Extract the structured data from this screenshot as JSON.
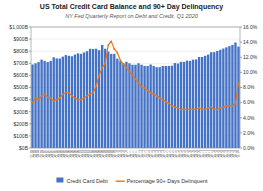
{
  "chart_data": {
    "type": "bar",
    "title": "US Total Credit Card Balance and 90+ Day Delinquency",
    "subtitle": "NY Fed Quarterly Report on Debt and Credit, Q1 2020",
    "categories": [
      "Q1\n03",
      "Q2\n03",
      "Q3\n03",
      "Q4\n03",
      "Q1\n04",
      "Q2\n04",
      "Q3\n04",
      "Q4\n04",
      "Q1\n05",
      "Q2\n05",
      "Q3\n05",
      "Q4\n05",
      "Q1\n06",
      "Q2\n06",
      "Q3\n06",
      "Q4\n06",
      "Q1\n07",
      "Q2\n07",
      "Q3\n07",
      "Q4\n07",
      "Q1\n08",
      "Q2\n08",
      "Q3\n08",
      "Q4\n08",
      "Q1\n09",
      "Q2\n09",
      "Q3\n09",
      "Q4\n09",
      "Q1\n10",
      "Q2\n10",
      "Q3\n10",
      "Q4\n10",
      "Q1\n11",
      "Q2\n11",
      "Q3\n11",
      "Q4\n11",
      "Q1\n12",
      "Q2\n12",
      "Q3\n12",
      "Q4\n12",
      "Q1\n13",
      "Q2\n13",
      "Q3\n13",
      "Q4\n13",
      "Q1\n14",
      "Q2\n14",
      "Q3\n14",
      "Q4\n14",
      "Q1\n15",
      "Q2\n15",
      "Q3\n15",
      "Q4\n15",
      "Q1\n16",
      "Q2\n16",
      "Q3\n16",
      "Q4\n16",
      "Q1\n17",
      "Q2\n17",
      "Q3\n17",
      "Q4\n17",
      "Q1\n18",
      "Q2\n18",
      "Q3\n18",
      "Q4\n18",
      "Q1\n19",
      "Q2\n19",
      "Q3\n19",
      "Q4\n19",
      "Q1\n20"
    ],
    "series": [
      {
        "name": "Credit Card Debt",
        "type": "bar",
        "color": "#4472C4",
        "values": [
          690,
          700,
          710,
          730,
          720,
          710,
          720,
          750,
          740,
          740,
          755,
          768,
          762,
          758,
          772,
          782,
          778,
          790,
          800,
          820,
          818,
          820,
          808,
          852,
          820,
          798,
          778,
          778,
          738,
          718,
          698,
          712,
          700,
          688,
          688,
          700,
          688,
          678,
          678,
          690,
          678,
          668,
          668,
          678,
          678,
          678,
          680,
          702,
          698,
          712,
          712,
          722,
          720,
          730,
          732,
          752,
          752,
          762,
          772,
          792,
          792,
          802,
          812,
          822,
          832,
          842,
          852,
          872,
          838
        ]
      },
      {
        "name": "Percentage 90+ Days Delinquent",
        "type": "line",
        "color": "#E8751A",
        "marker": "circle",
        "axis": "y2",
        "values": [
          6.0,
          6.6,
          6.4,
          6.9,
          7.1,
          6.7,
          6.6,
          6.2,
          6.4,
          6.6,
          7.1,
          7.3,
          7.3,
          6.9,
          6.6,
          6.4,
          6.4,
          6.6,
          6.9,
          7.1,
          7.3,
          8.2,
          9.6,
          10.6,
          11.2,
          13.6,
          14.1,
          13.1,
          12.6,
          11.6,
          11.1,
          10.6,
          10.1,
          9.6,
          9.1,
          8.6,
          8.1,
          7.9,
          7.6,
          7.3,
          7.1,
          6.9,
          6.6,
          6.4,
          6.1,
          5.9,
          5.6,
          5.4,
          5.3,
          5.1,
          5.1,
          5.1,
          5.1,
          5.1,
          5.1,
          5.3,
          5.1,
          5.1,
          5.3,
          5.4,
          5.1,
          5.1,
          5.3,
          5.4,
          5.6,
          5.6,
          5.6,
          5.9,
          8.6
        ]
      }
    ],
    "ylim": [
      0,
      1000
    ],
    "yticks": [
      {
        "value": 0,
        "label": "$0B"
      },
      {
        "value": 100,
        "label": "$100B"
      },
      {
        "value": 200,
        "label": "$200B"
      },
      {
        "value": 300,
        "label": "$300B"
      },
      {
        "value": 400,
        "label": "$400B"
      },
      {
        "value": 500,
        "label": "$500B"
      },
      {
        "value": 600,
        "label": "$600B"
      },
      {
        "value": 700,
        "label": "$700B"
      },
      {
        "value": 800,
        "label": "$800B"
      },
      {
        "value": 900,
        "label": "$900B"
      },
      {
        "value": 1000,
        "label": "$1,000B"
      }
    ],
    "y2lim": [
      0,
      16
    ],
    "y2ticks": [
      {
        "value": 0,
        "label": "0.0%"
      },
      {
        "value": 2,
        "label": "2.0%"
      },
      {
        "value": 4,
        "label": "4.0%"
      },
      {
        "value": 6,
        "label": "6.0%"
      },
      {
        "value": 8,
        "label": "8.0%"
      },
      {
        "value": 10,
        "label": "10.0%"
      },
      {
        "value": 12,
        "label": "12.0%"
      },
      {
        "value": 14,
        "label": "14.0%"
      },
      {
        "value": 16,
        "label": "16.0%"
      }
    ],
    "grid": true,
    "legend": "bottom"
  }
}
